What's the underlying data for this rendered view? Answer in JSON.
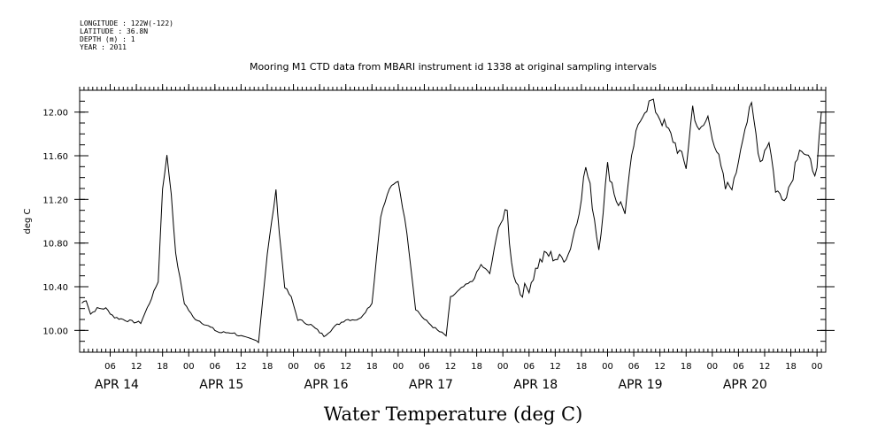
{
  "header": {
    "meta_lines": [
      "LONGITUDE : 122W(-122)",
      "LATITUDE : 36.8N",
      "DEPTH (m) : 1",
      "YEAR : 2011"
    ]
  },
  "chart_data": {
    "type": "line",
    "title": "Mooring M1 CTD data from MBARI instrument id 1338 at original sampling intervals",
    "ylabel": "deg C",
    "xlabel": "Water Temperature (deg C)",
    "ylim": [
      9.8,
      12.2
    ],
    "xlim": [
      "2011-04-13 23:00",
      "2011-04-21 02:00"
    ],
    "y_ticks": [
      "10.00",
      "10.40",
      "10.80",
      "11.20",
      "11.60",
      "12.00"
    ],
    "x_hour_ticks": [
      "06",
      "12",
      "18",
      "00",
      "06",
      "12",
      "18",
      "00",
      "06",
      "12",
      "18",
      "00",
      "06",
      "12",
      "18",
      "00",
      "06",
      "12",
      "18",
      "00",
      "06",
      "12",
      "18",
      "00",
      "06",
      "12",
      "18",
      "00"
    ],
    "x_day_labels": [
      "APR 14",
      "APR 15",
      "APR 16",
      "APR 17",
      "APR 18",
      "APR 19",
      "APR 20"
    ],
    "grid": false,
    "series": [
      {
        "x": [
          "2011-04-13 23:30",
          "2011-04-14 00:30",
          "2011-04-14 01:30",
          "2011-04-14 03:00",
          "2011-04-14 05:00",
          "2011-04-14 07:00",
          "2011-04-14 09:00",
          "2011-04-14 11:00",
          "2011-04-14 13:00",
          "2011-04-14 15:00",
          "2011-04-14 17:00",
          "2011-04-14 18:00",
          "2011-04-14 19:00",
          "2011-04-14 20:00",
          "2011-04-14 21:00",
          "2011-04-14 23:00",
          "2011-04-15 01:00",
          "2011-04-15 04:00",
          "2011-04-15 07:00",
          "2011-04-15 10:00",
          "2011-04-15 13:00",
          "2011-04-15 16:00",
          "2011-04-15 18:00",
          "2011-04-15 20:00",
          "2011-04-15 20:45",
          "2011-04-15 22:00",
          "2011-04-15 23:30",
          "2011-04-16 01:00",
          "2011-04-16 04:00",
          "2011-04-16 07:00",
          "2011-04-16 10:00",
          "2011-04-16 12:00",
          "2011-04-16 15:00",
          "2011-04-16 18:00",
          "2011-04-16 20:00",
          "2011-04-16 22:00",
          "2011-04-17 00:00",
          "2011-04-17 02:00",
          "2011-04-17 04:00",
          "2011-04-17 06:00",
          "2011-04-17 09:00",
          "2011-04-17 11:00",
          "2011-04-17 12:00",
          "2011-04-17 15:00",
          "2011-04-17 17:00",
          "2011-04-17 19:00",
          "2011-04-17 21:00",
          "2011-04-17 23:00",
          "2011-04-18 01:00",
          "2011-04-18 02:00",
          "2011-04-18 04:00",
          "2011-04-18 06:00",
          "2011-04-18 08:00",
          "2011-04-18 10:00",
          "2011-04-18 13:00",
          "2011-04-18 15:00",
          "2011-04-18 17:00",
          "2011-04-18 19:00",
          "2011-04-18 20:00",
          "2011-04-18 22:00",
          "2011-04-19 00:00",
          "2011-04-19 02:00",
          "2011-04-19 04:00",
          "2011-04-19 06:00",
          "2011-04-19 08:00",
          "2011-04-19 10:00",
          "2011-04-19 12:00",
          "2011-04-19 15:00",
          "2011-04-19 18:00",
          "2011-04-19 19:30",
          "2011-04-19 21:00",
          "2011-04-19 23:00",
          "2011-04-20 01:00",
          "2011-04-20 03:00",
          "2011-04-20 05:00",
          "2011-04-20 07:00",
          "2011-04-20 09:00",
          "2011-04-20 11:00",
          "2011-04-20 13:00",
          "2011-04-20 14:30",
          "2011-04-20 16:00",
          "2011-04-20 18:00",
          "2011-04-20 20:00",
          "2011-04-20 22:00",
          "2011-04-21 00:00",
          "2011-04-21 01:00"
        ],
        "values": [
          10.25,
          10.28,
          10.15,
          10.2,
          10.2,
          10.12,
          10.1,
          10.08,
          10.07,
          10.25,
          10.45,
          11.3,
          11.6,
          11.25,
          10.7,
          10.25,
          10.12,
          10.05,
          9.98,
          9.98,
          9.93,
          9.9,
          10.7,
          11.28,
          10.9,
          10.4,
          10.3,
          10.1,
          10.05,
          9.95,
          10.05,
          10.1,
          10.1,
          10.25,
          11.05,
          11.3,
          11.37,
          10.9,
          10.2,
          10.1,
          10.0,
          9.95,
          10.3,
          10.4,
          10.45,
          10.6,
          10.52,
          10.95,
          11.08,
          10.6,
          10.35,
          10.4,
          10.6,
          10.7,
          10.65,
          10.7,
          11.0,
          11.5,
          11.3,
          10.75,
          11.5,
          11.2,
          11.1,
          11.7,
          12.0,
          12.1,
          11.95,
          11.75,
          11.5,
          12.05,
          11.8,
          11.95,
          11.65,
          11.3,
          11.35,
          11.8,
          12.05,
          11.55,
          11.75,
          11.3,
          11.2,
          11.35,
          11.7,
          11.55,
          11.45,
          12.0
        ]
      }
    ]
  }
}
